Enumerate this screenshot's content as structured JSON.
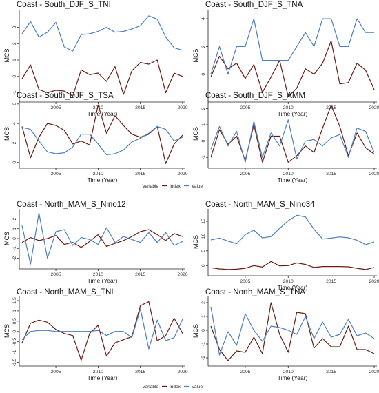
{
  "colors": {
    "index": "#6b1a12",
    "value": "#4a7fc1",
    "axis": "#222222"
  },
  "legend": {
    "title": "Variable",
    "items": [
      "Index",
      "Value"
    ]
  },
  "chart_data": [
    {
      "type": "line",
      "title": "Coast - South_DJF_S_TNI",
      "xlabel": "Time (Year)",
      "ylabel": "MCS",
      "x": [
        2001,
        2002,
        2003,
        2004,
        2005,
        2006,
        2007,
        2008,
        2009,
        2010,
        2011,
        2012,
        2013,
        2014,
        2015,
        2016,
        2017,
        2018,
        2019,
        2020
      ],
      "xticks": [
        2005,
        2010,
        2015,
        2020
      ],
      "yticks": [
        -1,
        0,
        1,
        2,
        3
      ],
      "ylim": [
        -1.4,
        3.95
      ],
      "series": [
        {
          "name": "Index",
          "values": [
            -0.15,
            0.7,
            -0.8,
            -1.0,
            -0.85,
            -0.9,
            -1.2,
            0.4,
            0.1,
            0.2,
            -0.3,
            0.6,
            -1.1,
            0.35,
            0.85,
            0.75,
            1.0,
            -1.0,
            0.2,
            0.0
          ]
        },
        {
          "name": "Value",
          "values": [
            2.6,
            3.35,
            2.4,
            2.7,
            3.3,
            1.8,
            1.55,
            2.55,
            2.6,
            2.75,
            3.0,
            2.7,
            2.75,
            2.9,
            3.1,
            3.7,
            3.5,
            2.4,
            1.75,
            1.6
          ]
        }
      ]
    },
    {
      "type": "line",
      "title": "Coast - South_DJF_S_TNA",
      "xlabel": "Time (Year)",
      "ylabel": "MCS",
      "x": [
        2001,
        2002,
        2003,
        2004,
        2005,
        2006,
        2007,
        2008,
        2009,
        2010,
        2011,
        2012,
        2013,
        2014,
        2015,
        2016,
        2017,
        2018,
        2019,
        2020
      ],
      "xticks": [
        2005,
        2010,
        2015,
        2020
      ],
      "yticks": [
        0,
        2,
        4
      ],
      "ylim": [
        -1.8,
        4.5
      ],
      "series": [
        {
          "name": "Index",
          "values": [
            -0.2,
            1.3,
            0.4,
            0.8,
            -0.3,
            0.7,
            -1.3,
            -0.2,
            1.0,
            -1.6,
            -1.0,
            0.4,
            0.0,
            0.8,
            2.4,
            -0.7,
            -0.6,
            0.8,
            0.3,
            -1.1
          ]
        },
        {
          "name": "Value",
          "values": [
            0.0,
            2.0,
            0.0,
            2.0,
            2.0,
            4.0,
            1.0,
            1.0,
            1.0,
            1.0,
            2.0,
            3.0,
            2.0,
            4.0,
            4.0,
            2.0,
            2.0,
            4.0,
            3.0,
            3.0
          ]
        }
      ]
    },
    {
      "type": "line",
      "title": "Coast - South_DJF_S_TSA",
      "xlabel": "Time (Year)",
      "ylabel": "MCS",
      "x": [
        2001,
        2002,
        2003,
        2004,
        2005,
        2006,
        2007,
        2008,
        2009,
        2010,
        2011,
        2012,
        2013,
        2014,
        2015,
        2016,
        2017,
        2018,
        2019,
        2020
      ],
      "xticks": [
        2005,
        2010,
        2015,
        2020
      ],
      "yticks": [
        0,
        2,
        4,
        6
      ],
      "ylim": [
        -0.3,
        6.2
      ],
      "series": [
        {
          "name": "Index",
          "values": [
            3.7,
            0.5,
            2.6,
            4.0,
            3.8,
            3.3,
            1.9,
            2.2,
            1.8,
            5.9,
            3.0,
            4.8,
            3.8,
            2.9,
            2.6,
            2.9,
            3.7,
            -0.1,
            1.9,
            2.8
          ]
        },
        {
          "name": "Value",
          "values": [
            3.6,
            3.4,
            2.2,
            1.1,
            0.9,
            1.0,
            1.6,
            2.9,
            2.9,
            1.9,
            0.8,
            0.9,
            1.3,
            2.1,
            2.5,
            3.0,
            3.7,
            3.4,
            2.2,
            2.6
          ]
        }
      ]
    },
    {
      "type": "line",
      "title": "Coast - South_DJF_S_AMM",
      "xlabel": "Time (Year)",
      "ylabel": "MCS",
      "x": [
        2001,
        2002,
        2003,
        2004,
        2005,
        2006,
        2007,
        2008,
        2009,
        2010,
        2011,
        2012,
        2013,
        2014,
        2015,
        2016,
        2017,
        2018,
        2019,
        2020
      ],
      "xticks": [
        2005,
        2010,
        2015,
        2020
      ],
      "yticks": [
        -1,
        0,
        1,
        2
      ],
      "ylim": [
        -1.5,
        2.4
      ],
      "series": [
        {
          "name": "Index",
          "values": [
            -1.0,
            0.7,
            -0.2,
            0.3,
            -1.2,
            1.0,
            -1.3,
            0.3,
            0.3,
            -1.3,
            -0.9,
            -0.3,
            -0.7,
            0.8,
            2.2,
            0.9,
            -0.9,
            0.5,
            -0.4,
            -0.8
          ]
        },
        {
          "name": "Value",
          "values": [
            -0.5,
            0.9,
            -0.3,
            0.6,
            -1.3,
            1.2,
            -1.0,
            0.5,
            -0.3,
            1.3,
            -1.1,
            0.0,
            0.1,
            -0.3,
            0.2,
            0.4,
            -1.0,
            0.8,
            0.6,
            -0.7
          ]
        }
      ]
    },
    {
      "type": "line",
      "title": "Coast - North_MAM_S_Nino12",
      "xlabel": "Time (Year)",
      "ylabel": "MCS",
      "x": [
        2001,
        2002,
        2003,
        2004,
        2005,
        2006,
        2007,
        2008,
        2009,
        2010,
        2011,
        2012,
        2013,
        2014,
        2015,
        2016,
        2017,
        2018,
        2019,
        2020
      ],
      "xticks": [
        2005,
        2010,
        2015,
        2020
      ],
      "yticks": [
        -2,
        -1,
        0,
        1,
        2
      ],
      "ylim": [
        -2.8,
        2.8
      ],
      "series": [
        {
          "name": "Index",
          "values": [
            -0.4,
            0.1,
            -0.2,
            0.0,
            0.3,
            -0.6,
            -0.4,
            -0.9,
            -0.3,
            0.4,
            -0.8,
            -0.5,
            -0.2,
            0.2,
            0.7,
            0.9,
            0.4,
            -0.2,
            0.5,
            0.2
          ]
        },
        {
          "name": "Value",
          "values": [
            1.3,
            -2.6,
            2.6,
            -2.0,
            0.7,
            0.9,
            -0.7,
            0.1,
            -0.1,
            -0.6,
            1.1,
            -0.4,
            0.2,
            -0.1,
            -0.4,
            0.6,
            -0.4,
            0.6,
            -0.7,
            -0.3
          ]
        }
      ]
    },
    {
      "type": "line",
      "title": "Coast - North_MAM_S_Nino34",
      "xlabel": "Time (Year)",
      "ylabel": "MCS",
      "x": [
        2001,
        2002,
        2003,
        2004,
        2005,
        2006,
        2007,
        2008,
        2009,
        2010,
        2011,
        2012,
        2013,
        2014,
        2015,
        2016,
        2017,
        2018,
        2019,
        2020
      ],
      "xticks": [
        2005,
        2010,
        2015,
        2020
      ],
      "yticks": [
        0,
        5,
        10,
        15
      ],
      "ylim": [
        -2.5,
        18.5
      ],
      "series": [
        {
          "name": "Index",
          "values": [
            -0.7,
            -1.1,
            -1.3,
            -1.2,
            -0.9,
            0.0,
            -0.5,
            1.4,
            -0.1,
            0.0,
            0.9,
            0.4,
            -0.6,
            -0.3,
            -0.3,
            -0.3,
            -0.4,
            -0.9,
            -1.3,
            -0.6
          ]
        },
        {
          "name": "Value",
          "values": [
            8.7,
            9.3,
            8.3,
            7.4,
            10.5,
            12.0,
            9.4,
            9.8,
            12.6,
            15.2,
            17.0,
            16.5,
            12.3,
            9.0,
            9.3,
            9.7,
            9.4,
            8.6,
            7.1,
            8.0
          ]
        }
      ]
    },
    {
      "type": "line",
      "title": "Coast - North_MAM_S_TNI",
      "xlabel": "Time (Year)",
      "ylabel": "MCS",
      "x": [
        2001,
        2002,
        2003,
        2004,
        2005,
        2006,
        2007,
        2008,
        2009,
        2010,
        2011,
        2012,
        2013,
        2014,
        2015,
        2016,
        2017,
        2018,
        2019,
        2020
      ],
      "xticks": [
        2005,
        2010,
        2015,
        2020
      ],
      "yticks": [
        -1.5,
        -1.0,
        -0.5,
        0.0,
        0.5,
        1.0,
        1.5
      ],
      "ylim": [
        -1.55,
        1.6
      ],
      "series": [
        {
          "name": "Index",
          "values": [
            -0.55,
            0.4,
            0.55,
            0.45,
            0.1,
            -0.1,
            -0.2,
            -1.4,
            -0.1,
            0.3,
            -1.2,
            -0.55,
            -0.4,
            -0.25,
            1.25,
            1.45,
            -0.45,
            -0.2,
            0.65,
            -0.1
          ]
        },
        {
          "name": "Value",
          "values": [
            -0.4,
            0.0,
            0.05,
            0.05,
            0.0,
            0.0,
            0.0,
            0.0,
            0.0,
            0.05,
            -0.2,
            0.0,
            0.0,
            -0.3,
            1.1,
            -0.85,
            0.55,
            -0.45,
            -0.3,
            0.6
          ]
        }
      ]
    },
    {
      "type": "line",
      "title": "Coast - North_MAM_S_TNA",
      "xlabel": "Time (Year)",
      "ylabel": "MCS",
      "x": [
        2001,
        2002,
        2003,
        2004,
        2005,
        2006,
        2007,
        2008,
        2009,
        2010,
        2011,
        2012,
        2013,
        2014,
        2015,
        2016,
        2017,
        2018,
        2019,
        2020
      ],
      "xticks": [
        2005,
        2010,
        2015,
        2020
      ],
      "yticks": [
        -2,
        -1,
        0,
        1,
        2
      ],
      "ylim": [
        -2.4,
        2.3
      ],
      "series": [
        {
          "name": "Index",
          "values": [
            0.3,
            -1.4,
            -2.2,
            -1.5,
            -1.6,
            -0.5,
            -1.7,
            2.0,
            -0.3,
            -1.6,
            1.3,
            1.2,
            -1.3,
            -0.6,
            -1.2,
            -1.2,
            0.3,
            -1.4,
            -1.4,
            -1.7
          ]
        },
        {
          "name": "Value",
          "values": [
            1.7,
            -1.8,
            -0.1,
            -1.1,
            1.2,
            0.0,
            -0.8,
            0.3,
            0.2,
            0.0,
            -0.3,
            1.0,
            -0.6,
            0.6,
            -0.5,
            -0.3,
            0.8,
            -0.4,
            -0.2,
            -0.6
          ]
        }
      ]
    }
  ]
}
